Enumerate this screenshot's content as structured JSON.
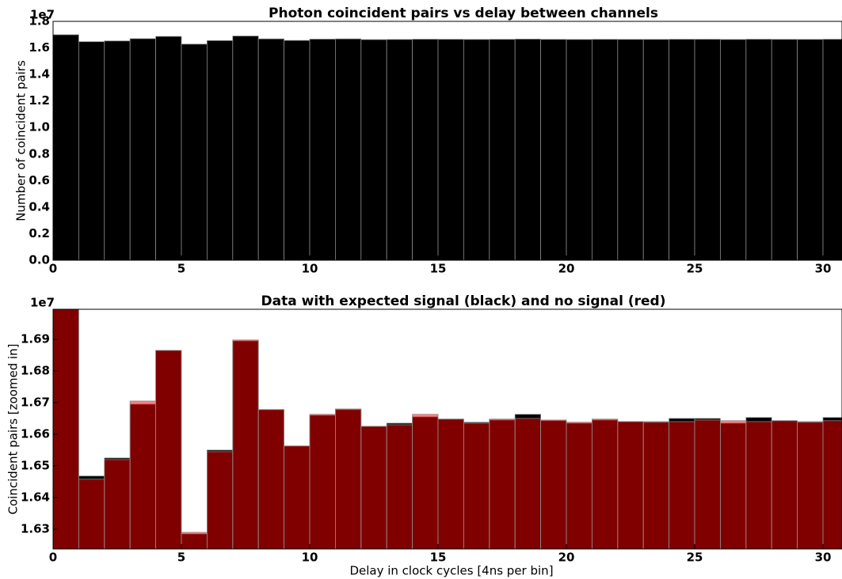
{
  "chart_data": [
    {
      "type": "bar",
      "title": "Photon coincident pairs vs delay between channels",
      "ylabel": "Number of coincident pairs",
      "offset_label": "1e7",
      "x": [
        0,
        1,
        2,
        3,
        4,
        5,
        6,
        7,
        8,
        9,
        10,
        11,
        12,
        13,
        14,
        15,
        16,
        17,
        18,
        19,
        20,
        21,
        22,
        23,
        24,
        25,
        26,
        27,
        28,
        29,
        30
      ],
      "bar_width": 1,
      "values": [
        16990000,
        16468000,
        16525000,
        16695000,
        16865000,
        16285000,
        16550000,
        16895000,
        16678000,
        16563000,
        16660000,
        16678000,
        16625000,
        16635000,
        16655000,
        16648000,
        16638000,
        16645000,
        16663000,
        16643000,
        16635000,
        16645000,
        16640000,
        16640000,
        16650000,
        16650000,
        16635000,
        16653000,
        16643000,
        16640000,
        16653000
      ],
      "color": "#000000",
      "xlim": [
        0,
        30.74
      ],
      "xticks": [
        0,
        5,
        10,
        15,
        20,
        25,
        30
      ],
      "ylim": [
        0,
        18000000
      ],
      "yticks": [
        {
          "value": 0,
          "label": "0.0"
        },
        {
          "value": 2000000,
          "label": "0.2"
        },
        {
          "value": 4000000,
          "label": "0.4"
        },
        {
          "value": 6000000,
          "label": "0.6"
        },
        {
          "value": 8000000,
          "label": "0.8"
        },
        {
          "value": 10000000,
          "label": "1.0"
        },
        {
          "value": 12000000,
          "label": "1.2"
        },
        {
          "value": 14000000,
          "label": "1.4"
        },
        {
          "value": 16000000,
          "label": "1.6"
        },
        {
          "value": 18000000,
          "label": "1.8"
        }
      ]
    },
    {
      "type": "overlay_bar",
      "title": "Data with expected signal (black) and no signal (red)",
      "xlabel": "Delay in clock cycles [4ns per bin]",
      "ylabel": "Coincident pairs [zoomed in]",
      "offset_label": "1e7",
      "x": [
        0,
        1,
        2,
        3,
        4,
        5,
        6,
        7,
        8,
        9,
        10,
        11,
        12,
        13,
        14,
        15,
        16,
        17,
        18,
        19,
        20,
        21,
        22,
        23,
        24,
        25,
        26,
        27,
        28,
        29,
        30
      ],
      "bar_width": 1,
      "series": [
        {
          "color": "#000000",
          "opacity": 1,
          "values": [
            16995000,
            16468000,
            16525000,
            16695000,
            16865000,
            16285000,
            16550000,
            16895000,
            16678000,
            16563000,
            16660000,
            16678000,
            16625000,
            16635000,
            16655000,
            16648000,
            16638000,
            16645000,
            16663000,
            16643000,
            16635000,
            16645000,
            16640000,
            16640000,
            16650000,
            16650000,
            16635000,
            16653000,
            16643000,
            16640000,
            16653000
          ]
        },
        {
          "color": "#ff0000",
          "opacity": 0.5,
          "values": [
            16995000,
            16458000,
            16520000,
            16705000,
            16865000,
            16290000,
            16545000,
            16898000,
            16678000,
            16563000,
            16663000,
            16680000,
            16625000,
            16630000,
            16663000,
            16648000,
            16635000,
            16648000,
            16650000,
            16645000,
            16638000,
            16648000,
            16640000,
            16638000,
            16640000,
            16645000,
            16643000,
            16640000,
            16643000,
            16638000,
            16643000
          ]
        }
      ],
      "xlim": [
        0,
        30.74
      ],
      "xticks": [
        0,
        5,
        10,
        15,
        20,
        25,
        30
      ],
      "ylim": [
        16237500,
        16995000
      ],
      "yticks": [
        {
          "value": 16300000,
          "label": "1.63"
        },
        {
          "value": 16400000,
          "label": "1.64"
        },
        {
          "value": 16500000,
          "label": "1.65"
        },
        {
          "value": 16600000,
          "label": "1.66"
        },
        {
          "value": 16700000,
          "label": "1.67"
        },
        {
          "value": 16800000,
          "label": "1.68"
        },
        {
          "value": 16900000,
          "label": "1.69"
        }
      ]
    }
  ]
}
